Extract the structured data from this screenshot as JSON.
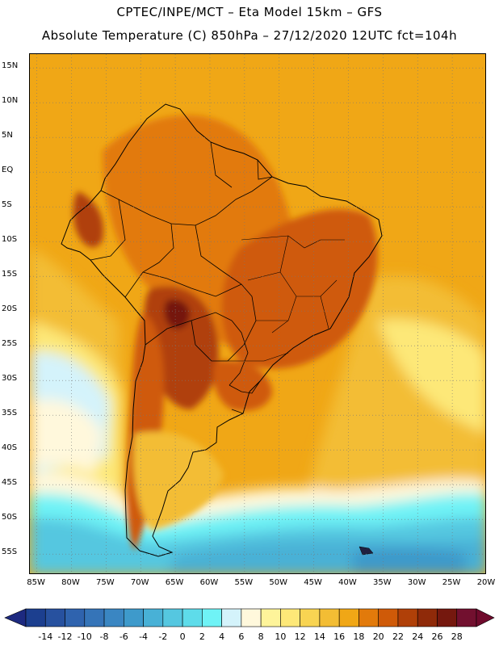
{
  "header": {
    "line1": "CPTEC/INPE/MCT –  Eta Model 15km – GFS",
    "line2": "Absolute Temperature (C) 850hPa – 27/12/2020 12UTC fct=104h"
  },
  "map": {
    "lat_labels": [
      "15N",
      "10N",
      "5N",
      "EQ",
      "5S",
      "10S",
      "15S",
      "20S",
      "25S",
      "30S",
      "35S",
      "40S",
      "45S",
      "50S",
      "55S"
    ],
    "lat_values": [
      15,
      10,
      5,
      0,
      -5,
      -10,
      -15,
      -20,
      -25,
      -30,
      -35,
      -40,
      -45,
      -50,
      -55
    ],
    "lon_labels": [
      "85W",
      "80W",
      "75W",
      "70W",
      "65W",
      "60W",
      "55W",
      "50W",
      "45W",
      "40W",
      "35W",
      "30W",
      "25W",
      "20W"
    ],
    "lon_values": [
      -85,
      -80,
      -75,
      -70,
      -65,
      -60,
      -55,
      -50,
      -45,
      -40,
      -35,
      -30,
      -25,
      -20
    ],
    "lon_range": [
      -86,
      -20
    ],
    "lat_range": [
      17,
      -58
    ],
    "gridlines": "dotted"
  },
  "colorbar": {
    "labels": [
      "-14",
      "-12",
      "-10",
      "-8",
      "-6",
      "-4",
      "-2",
      "0",
      "2",
      "4",
      "6",
      "8",
      "10",
      "12",
      "14",
      "16",
      "18",
      "20",
      "22",
      "24",
      "26",
      "28"
    ],
    "colors": [
      "#1c3f8f",
      "#27519f",
      "#2f63ae",
      "#3574b8",
      "#3a86c2",
      "#3e9acb",
      "#48b1d6",
      "#55c7e0",
      "#5edcea",
      "#6ff3f6",
      "#d4f3fb",
      "#fff8dc",
      "#fef49a",
      "#fde878",
      "#f8d452",
      "#f3bd34",
      "#f0a716",
      "#e27a0b",
      "#cf5a08",
      "#b04008",
      "#8f2a09",
      "#75180e",
      "#72102f"
    ],
    "min_arrow": "#1d2a80",
    "max_arrow": "#6f0a2c"
  }
}
